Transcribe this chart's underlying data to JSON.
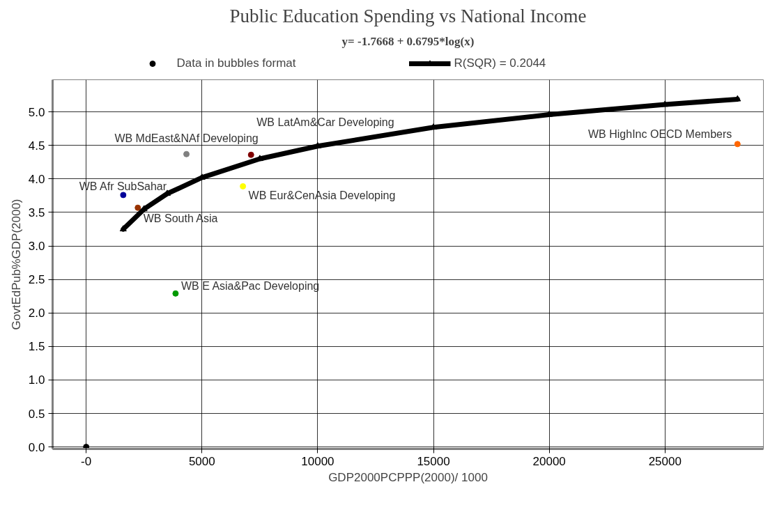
{
  "chart_data": {
    "type": "scatter",
    "title": "Public Education Spending vs National Income",
    "subtitle": "y= -1.7668 + 0.6795*log(x)",
    "xlabel": "GDP2000PCPPP(2000)/ 1000",
    "ylabel": "GovtEdPub%GDP(2000)",
    "xlim": [
      -1450,
      29250
    ],
    "ylim": [
      -0.03,
      5.48
    ],
    "xticks": [
      {
        "value": 0,
        "label": "-0"
      },
      5000,
      10000,
      15000,
      20000,
      25000
    ],
    "yticks": [
      {
        "value": 0,
        "label": "0.0"
      },
      0.5,
      {
        "value": 1,
        "label": "1.0"
      },
      1.5,
      {
        "value": 2,
        "label": "2.0"
      },
      2.5,
      {
        "value": 3,
        "label": "3.0"
      },
      3.5,
      {
        "value": 4,
        "label": "4.0"
      },
      4.5,
      {
        "value": 5,
        "label": "5.0"
      }
    ],
    "grid": true,
    "legend": "top",
    "series": [
      {
        "name": "Data in bubbles format",
        "marker": "circle",
        "x": [
          1600,
          2230,
          4330,
          7120,
          6770,
          3860,
          28130,
          0
        ],
        "values": [
          3.76,
          3.57,
          4.37,
          4.36,
          3.89,
          2.29,
          4.52,
          0
        ],
        "colors": [
          "#000099",
          "#993300",
          "#808080",
          "#800000",
          "#ffff00",
          "#009900",
          "#ff6600",
          "#000000"
        ]
      },
      {
        "name": "R(SQR) = 0.2044",
        "type": "line",
        "color": "#000000",
        "marker": "triangle",
        "x": [
          1600,
          2500,
          3500,
          5000,
          7500,
          10000,
          15000,
          20000,
          25000,
          28130
        ],
        "values": [
          3.25,
          3.55,
          3.78,
          4.02,
          4.3,
          4.49,
          4.77,
          4.96,
          5.11,
          5.19
        ]
      }
    ],
    "annotations": [
      {
        "text": "WB Afr SubSahar",
        "x": 1600,
        "y": 3.76
      },
      {
        "text": "WB South Asia",
        "x": 2230,
        "y": 3.57
      },
      {
        "text": "WB MdEast&NAf Developing",
        "x": 4330,
        "y": 4.37
      },
      {
        "text": "WB LatAm&Car Developing",
        "x": 7120,
        "y": 4.36
      },
      {
        "text": "WB Eur&CenAsia Developing",
        "x": 6770,
        "y": 3.89
      },
      {
        "text": "WB E Asia&Pac Developing",
        "x": 3860,
        "y": 2.29
      },
      {
        "text": "WB HighInc OECD Members",
        "x": 28130,
        "y": 4.52
      }
    ]
  }
}
